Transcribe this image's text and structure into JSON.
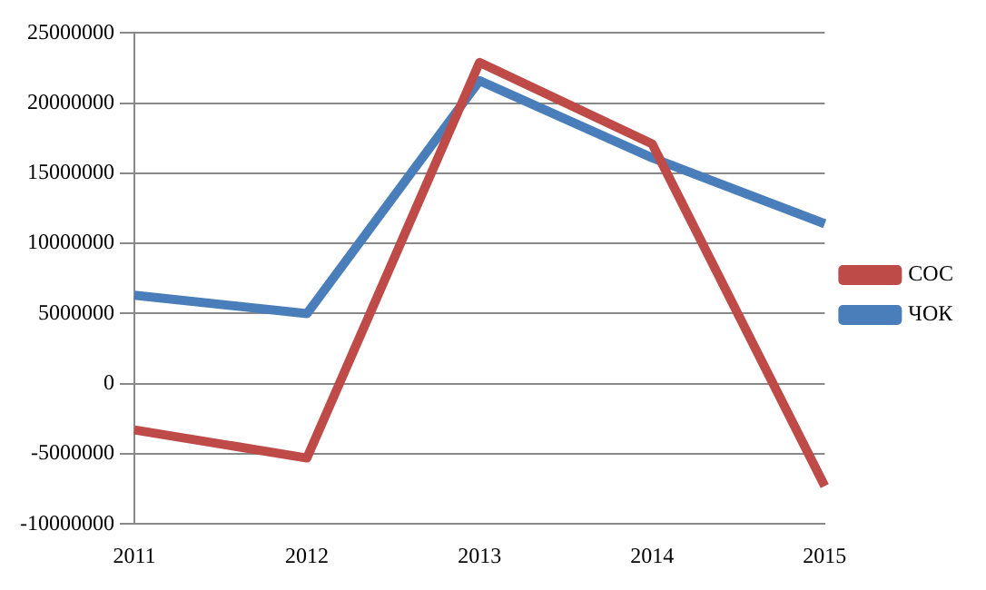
{
  "chart_data": {
    "type": "line",
    "categories": [
      "2011",
      "2012",
      "2013",
      "2014",
      "2015"
    ],
    "series": [
      {
        "name": "СОС",
        "color": "#be4b48",
        "values": [
          -3300000,
          -5300000,
          22900000,
          17100000,
          -7300000
        ]
      },
      {
        "name": "ЧОК",
        "color": "#4a7ebb",
        "values": [
          6300000,
          5000000,
          21600000,
          16100000,
          11400000
        ]
      }
    ],
    "ylim": [
      -10000000,
      25000000
    ],
    "yticks": [
      -10000000,
      -5000000,
      0,
      5000000,
      10000000,
      15000000,
      20000000,
      25000000
    ],
    "grid": "y",
    "legend": "right"
  }
}
